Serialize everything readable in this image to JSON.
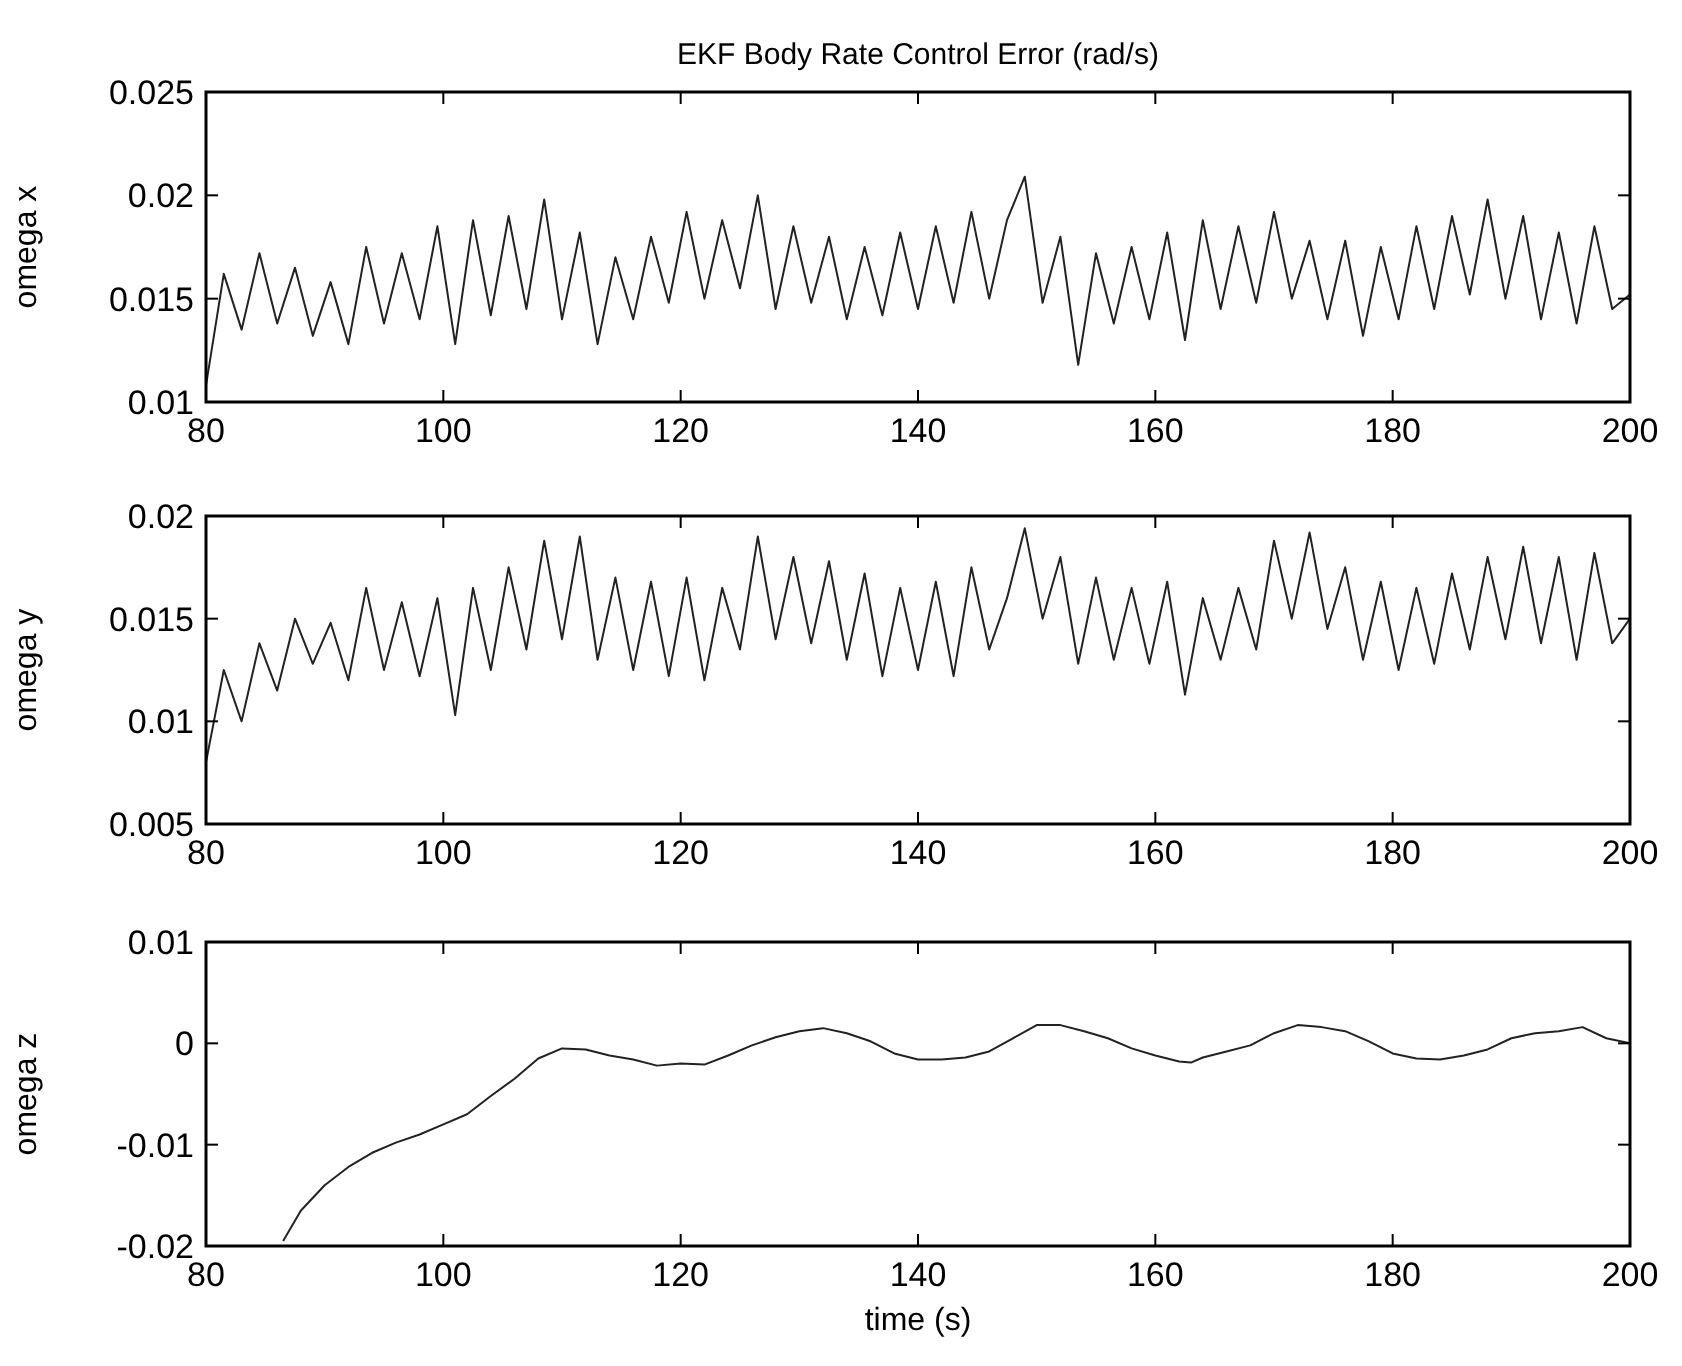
{
  "chart_data": [
    {
      "type": "line",
      "title": "EKF Body Rate Control Error (rad/s)",
      "ylabel": "omega x",
      "xlim": [
        80,
        200
      ],
      "xticks": [
        80,
        100,
        120,
        140,
        160,
        180,
        200
      ],
      "ylim": [
        0.01,
        0.025
      ],
      "yticks": [
        0.01,
        0.015,
        0.02,
        0.025
      ],
      "grid": false,
      "x": [
        80,
        81.5,
        83,
        84.5,
        86,
        87.5,
        89,
        90.5,
        92,
        93.5,
        95,
        96.5,
        98,
        99.5,
        101,
        102.5,
        104,
        105.5,
        107,
        108.5,
        110,
        111.5,
        113,
        114.5,
        116,
        117.5,
        119,
        120.5,
        122,
        123.5,
        125,
        126.5,
        128,
        129.5,
        131,
        132.5,
        134,
        135.5,
        137,
        138.5,
        140,
        141.5,
        143,
        144.5,
        146,
        147.5,
        149,
        150.5,
        152,
        153.5,
        155,
        156.5,
        158,
        159.5,
        161,
        162.5,
        164,
        165.5,
        167,
        168.5,
        170,
        171.5,
        173,
        174.5,
        176,
        177.5,
        179,
        180.5,
        182,
        183.5,
        185,
        186.5,
        188,
        189.5,
        191,
        192.5,
        194,
        195.5,
        197,
        198.5,
        200
      ],
      "series": [
        {
          "color": "#222222",
          "values": [
            0.0108,
            0.0162,
            0.0135,
            0.0172,
            0.0138,
            0.0165,
            0.0132,
            0.0158,
            0.0128,
            0.0175,
            0.0138,
            0.0172,
            0.014,
            0.0185,
            0.0128,
            0.0188,
            0.0142,
            0.019,
            0.0145,
            0.0198,
            0.014,
            0.0182,
            0.0128,
            0.017,
            0.014,
            0.018,
            0.0148,
            0.0192,
            0.015,
            0.0188,
            0.0155,
            0.02,
            0.0145,
            0.0185,
            0.0148,
            0.018,
            0.014,
            0.0175,
            0.0142,
            0.0182,
            0.0145,
            0.0185,
            0.0148,
            0.0192,
            0.015,
            0.0188,
            0.0209,
            0.0148,
            0.018,
            0.0118,
            0.0172,
            0.0138,
            0.0175,
            0.014,
            0.0182,
            0.013,
            0.0188,
            0.0145,
            0.0185,
            0.0148,
            0.0192,
            0.015,
            0.0178,
            0.014,
            0.0178,
            0.0132,
            0.0175,
            0.014,
            0.0185,
            0.0145,
            0.019,
            0.0152,
            0.0198,
            0.015,
            0.019,
            0.014,
            0.0182,
            0.0138,
            0.0185,
            0.0145,
            0.0152
          ]
        }
      ]
    },
    {
      "type": "line",
      "ylabel": "omega y",
      "xlim": [
        80,
        200
      ],
      "xticks": [
        80,
        100,
        120,
        140,
        160,
        180,
        200
      ],
      "ylim": [
        0.005,
        0.02
      ],
      "yticks": [
        0.005,
        0.01,
        0.015,
        0.02
      ],
      "grid": false,
      "x": [
        80,
        81.5,
        83,
        84.5,
        86,
        87.5,
        89,
        90.5,
        92,
        93.5,
        95,
        96.5,
        98,
        99.5,
        101,
        102.5,
        104,
        105.5,
        107,
        108.5,
        110,
        111.5,
        113,
        114.5,
        116,
        117.5,
        119,
        120.5,
        122,
        123.5,
        125,
        126.5,
        128,
        129.5,
        131,
        132.5,
        134,
        135.5,
        137,
        138.5,
        140,
        141.5,
        143,
        144.5,
        146,
        147.5,
        149,
        150.5,
        152,
        153.5,
        155,
        156.5,
        158,
        159.5,
        161,
        162.5,
        164,
        165.5,
        167,
        168.5,
        170,
        171.5,
        173,
        174.5,
        176,
        177.5,
        179,
        180.5,
        182,
        183.5,
        185,
        186.5,
        188,
        189.5,
        191,
        192.5,
        194,
        195.5,
        197,
        198.5,
        200
      ],
      "series": [
        {
          "color": "#222222",
          "values": [
            0.008,
            0.0125,
            0.01,
            0.0138,
            0.0115,
            0.015,
            0.0128,
            0.0148,
            0.012,
            0.0165,
            0.0125,
            0.0158,
            0.0122,
            0.016,
            0.0103,
            0.0165,
            0.0125,
            0.0175,
            0.0135,
            0.0188,
            0.014,
            0.019,
            0.013,
            0.017,
            0.0125,
            0.0168,
            0.0122,
            0.017,
            0.012,
            0.0165,
            0.0135,
            0.019,
            0.014,
            0.018,
            0.0138,
            0.0178,
            0.013,
            0.0172,
            0.0122,
            0.0165,
            0.0125,
            0.0168,
            0.0122,
            0.0175,
            0.0135,
            0.016,
            0.0194,
            0.015,
            0.018,
            0.0128,
            0.017,
            0.013,
            0.0165,
            0.0128,
            0.0168,
            0.0113,
            0.016,
            0.013,
            0.0165,
            0.0135,
            0.0188,
            0.015,
            0.0192,
            0.0145,
            0.0175,
            0.013,
            0.0168,
            0.0125,
            0.0165,
            0.0128,
            0.0172,
            0.0135,
            0.018,
            0.014,
            0.0185,
            0.0138,
            0.018,
            0.013,
            0.0182,
            0.0138,
            0.015
          ]
        }
      ]
    },
    {
      "type": "line",
      "ylabel": "omega z",
      "xlabel": "time (s)",
      "xlim": [
        80,
        200
      ],
      "xticks": [
        80,
        100,
        120,
        140,
        160,
        180,
        200
      ],
      "ylim": [
        -0.02,
        0.01
      ],
      "yticks": [
        -0.02,
        -0.01,
        0,
        0.01
      ],
      "grid": false,
      "x": [
        86.5,
        88,
        90,
        92,
        94,
        96,
        98,
        100,
        102,
        104,
        106,
        108,
        110,
        112,
        114,
        116,
        118,
        120,
        122,
        124,
        126,
        128,
        130,
        132,
        134,
        136,
        138,
        140,
        142,
        144,
        146,
        148,
        150,
        152,
        154,
        156,
        158,
        160,
        162,
        163,
        164,
        166,
        168,
        170,
        172,
        174,
        176,
        178,
        180,
        182,
        184,
        186,
        188,
        190,
        192,
        194,
        196,
        198,
        200
      ],
      "series": [
        {
          "color": "#222222",
          "values": [
            -0.0195,
            -0.0165,
            -0.014,
            -0.0122,
            -0.0108,
            -0.0098,
            -0.009,
            -0.008,
            -0.007,
            -0.0052,
            -0.0035,
            -0.0015,
            -0.0005,
            -0.0006,
            -0.0012,
            -0.0016,
            -0.0022,
            -0.002,
            -0.0021,
            -0.0012,
            -0.0002,
            0.0006,
            0.0012,
            0.0015,
            0.001,
            0.0002,
            -0.001,
            -0.0016,
            -0.0016,
            -0.0014,
            -0.0008,
            0.0005,
            0.0018,
            0.0018,
            0.0012,
            0.0005,
            -0.0005,
            -0.0012,
            -0.0018,
            -0.0019,
            -0.0014,
            -0.0008,
            -0.0002,
            0.001,
            0.0018,
            0.0016,
            0.0012,
            0.0002,
            -0.001,
            -0.0015,
            -0.0016,
            -0.0012,
            -0.0006,
            0.0005,
            0.001,
            0.0012,
            0.0016,
            0.0005,
            0
          ]
        }
      ]
    }
  ]
}
